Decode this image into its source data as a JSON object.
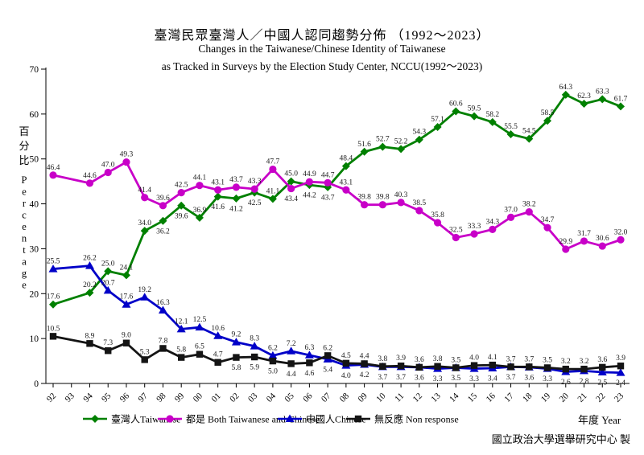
{
  "title": {
    "zh": "臺灣民眾臺灣人／中國人認同趨勢分佈 （1992～2023）",
    "en_line1": "Changes in the Taiwanese/Chinese Identity of Taiwanese",
    "en_line2": "as Tracked in Surveys by the Election Study Center, NCCU(1992～2023)"
  },
  "chart_data": {
    "type": "line",
    "x_labels": [
      "92",
      "93",
      "94",
      "95",
      "96",
      "97",
      "98",
      "99",
      "00",
      "01",
      "02",
      "03",
      "04",
      "05",
      "06",
      "07",
      "08",
      "09",
      "10",
      "11",
      "12",
      "13",
      "14",
      "15",
      "16",
      "17",
      "18",
      "19",
      "20",
      "21",
      "22",
      "23"
    ],
    "xlabel": "年度 Year",
    "ylabel_zh": "百分比",
    "ylabel_en": "Percentage",
    "ylim": [
      0,
      70
    ],
    "yticks": [
      0,
      10,
      20,
      30,
      40,
      50,
      60,
      70
    ],
    "grid": false,
    "legend_position": "bottom",
    "attribution": "國立政治大學選舉研究中心 製",
    "series": [
      {
        "key": "taiwanese",
        "legend_label": "臺灣人Taiwanese",
        "color": "#008000",
        "marker": "diamond",
        "values": [
          17.6,
          null,
          20.2,
          25.0,
          24.1,
          34.0,
          36.2,
          39.6,
          36.9,
          41.6,
          41.2,
          42.5,
          41.1,
          45.0,
          44.2,
          43.7,
          48.4,
          51.6,
          52.7,
          52.2,
          54.3,
          57.1,
          60.6,
          59.5,
          58.2,
          55.5,
          54.5,
          58.5,
          64.3,
          62.3,
          63.3,
          61.7
        ]
      },
      {
        "key": "both",
        "legend_label": "都是 Both Taiwanese and Chinese",
        "color": "#c800c8",
        "marker": "circle",
        "values": [
          46.4,
          null,
          44.6,
          47.0,
          49.3,
          41.4,
          39.6,
          42.5,
          44.1,
          43.1,
          43.7,
          43.3,
          47.7,
          43.4,
          44.9,
          44.7,
          43.1,
          39.8,
          39.8,
          40.3,
          38.5,
          35.8,
          32.5,
          33.3,
          34.3,
          37.0,
          38.2,
          34.7,
          29.9,
          31.7,
          30.6,
          32.0
        ]
      },
      {
        "key": "chinese",
        "legend_label": "中國人Chinese",
        "color": "#0000c8",
        "marker": "triangle",
        "values": [
          25.5,
          null,
          26.2,
          20.7,
          17.6,
          19.2,
          16.3,
          12.1,
          12.5,
          10.6,
          9.2,
          8.3,
          6.2,
          7.2,
          6.3,
          5.4,
          4.0,
          4.2,
          3.7,
          3.7,
          3.6,
          3.3,
          3.5,
          3.3,
          3.4,
          3.7,
          3.6,
          3.3,
          2.6,
          2.8,
          2.5,
          2.4
        ]
      },
      {
        "key": "nonresponse",
        "legend_label": "無反應 Non response",
        "color": "#141414",
        "marker": "square",
        "values": [
          10.5,
          null,
          8.9,
          7.3,
          9.0,
          5.3,
          7.8,
          5.8,
          6.5,
          4.7,
          5.8,
          5.9,
          5.0,
          4.4,
          4.6,
          6.2,
          4.5,
          4.4,
          3.8,
          3.9,
          3.6,
          3.8,
          3.5,
          4.0,
          4.1,
          3.7,
          3.7,
          3.5,
          3.2,
          3.2,
          3.6,
          3.9
        ]
      }
    ]
  }
}
